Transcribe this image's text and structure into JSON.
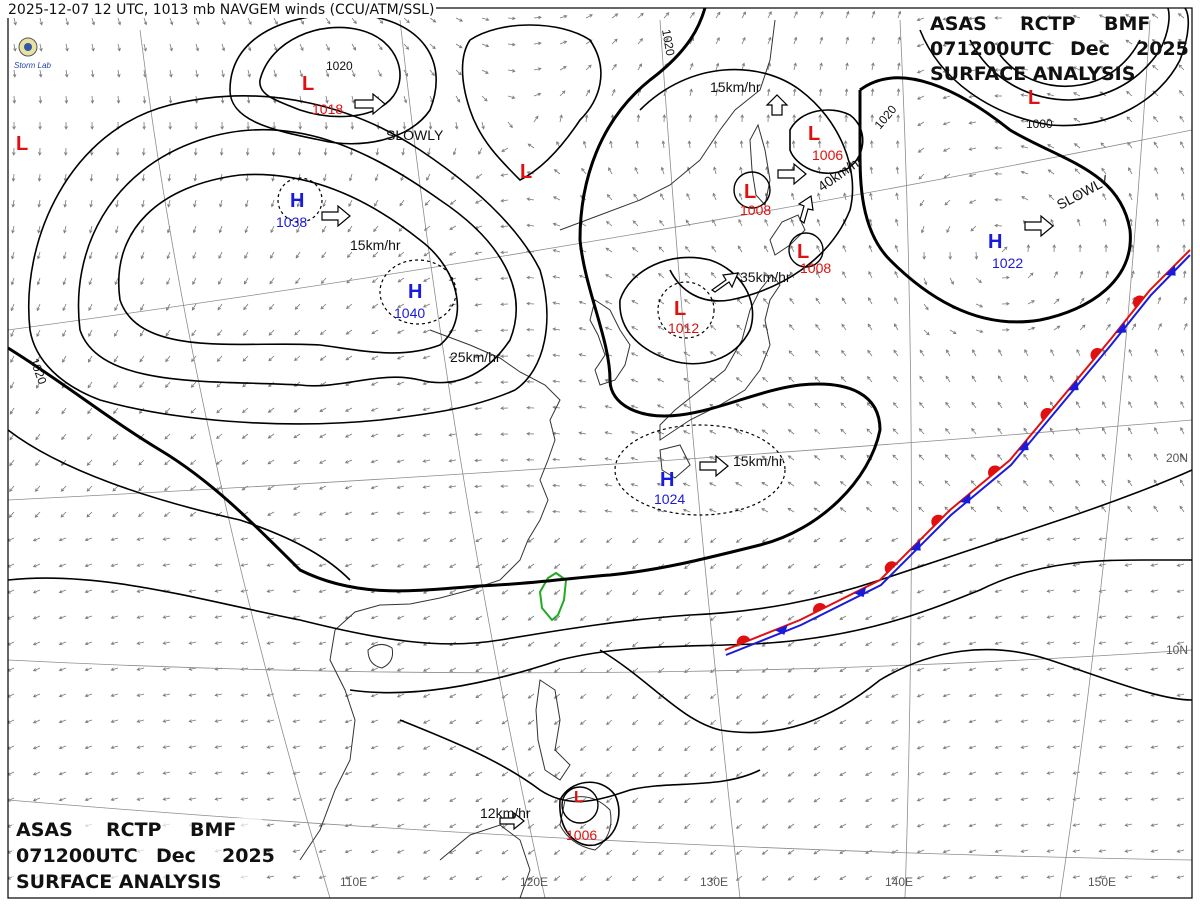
{
  "caption": "2025-12-07 12 UTC, 1013 mb NAVGEM winds (CCU/ATM/SSL)",
  "logo_text": "Storm Lab",
  "header_top_right": {
    "line1": [
      "ASAS",
      "RCTP",
      "BMF"
    ],
    "line2": [
      "071200UTC",
      "Dec",
      "2025"
    ],
    "line3": "SURFACE ANALYSIS"
  },
  "header_bottom_left": {
    "line1": [
      "ASAS",
      "RCTP",
      "BMF"
    ],
    "line2": [
      "071200UTC",
      "Dec",
      "2025"
    ],
    "line3": "SURFACE ANALYSIS"
  },
  "colors": {
    "high": "#1a1adb",
    "low": "#e01010",
    "front_warm": "#e01010",
    "front_cold": "#1a1adb",
    "taiwan_coast": "#22aa22",
    "isobar": "#000000",
    "coast": "#333333",
    "wind": "#7a7a7a"
  },
  "systems": [
    {
      "type": "H",
      "pressure": "1038"
    },
    {
      "type": "H",
      "pressure": "1040"
    },
    {
      "type": "H",
      "pressure": "1024"
    },
    {
      "type": "H",
      "pressure": "1022"
    },
    {
      "type": "L",
      "pressure": "1018"
    },
    {
      "type": "L",
      "pressure": "1012"
    },
    {
      "type": "L",
      "pressure": "1008"
    },
    {
      "type": "L",
      "pressure": "1008"
    },
    {
      "type": "L",
      "pressure": "1006"
    },
    {
      "type": "L",
      "pressure": "1006"
    },
    {
      "type": "L",
      "pressure": ""
    },
    {
      "type": "L",
      "pressure": ""
    },
    {
      "type": "L",
      "pressure": ""
    }
  ],
  "motions": [
    "SLOWLY",
    "15km/hr",
    "15km/hr",
    "25km/hr",
    "15km/hr",
    "40km/hr",
    "35km/hr",
    "SLOWLY",
    "12km/hr"
  ],
  "isobar_labels": [
    "1020",
    "1020",
    "1020",
    "1020",
    "1000"
  ],
  "longitudes": [
    "110E",
    "120E",
    "130E",
    "140E",
    "150E"
  ],
  "latitudes": [
    "20N",
    "10N"
  ]
}
